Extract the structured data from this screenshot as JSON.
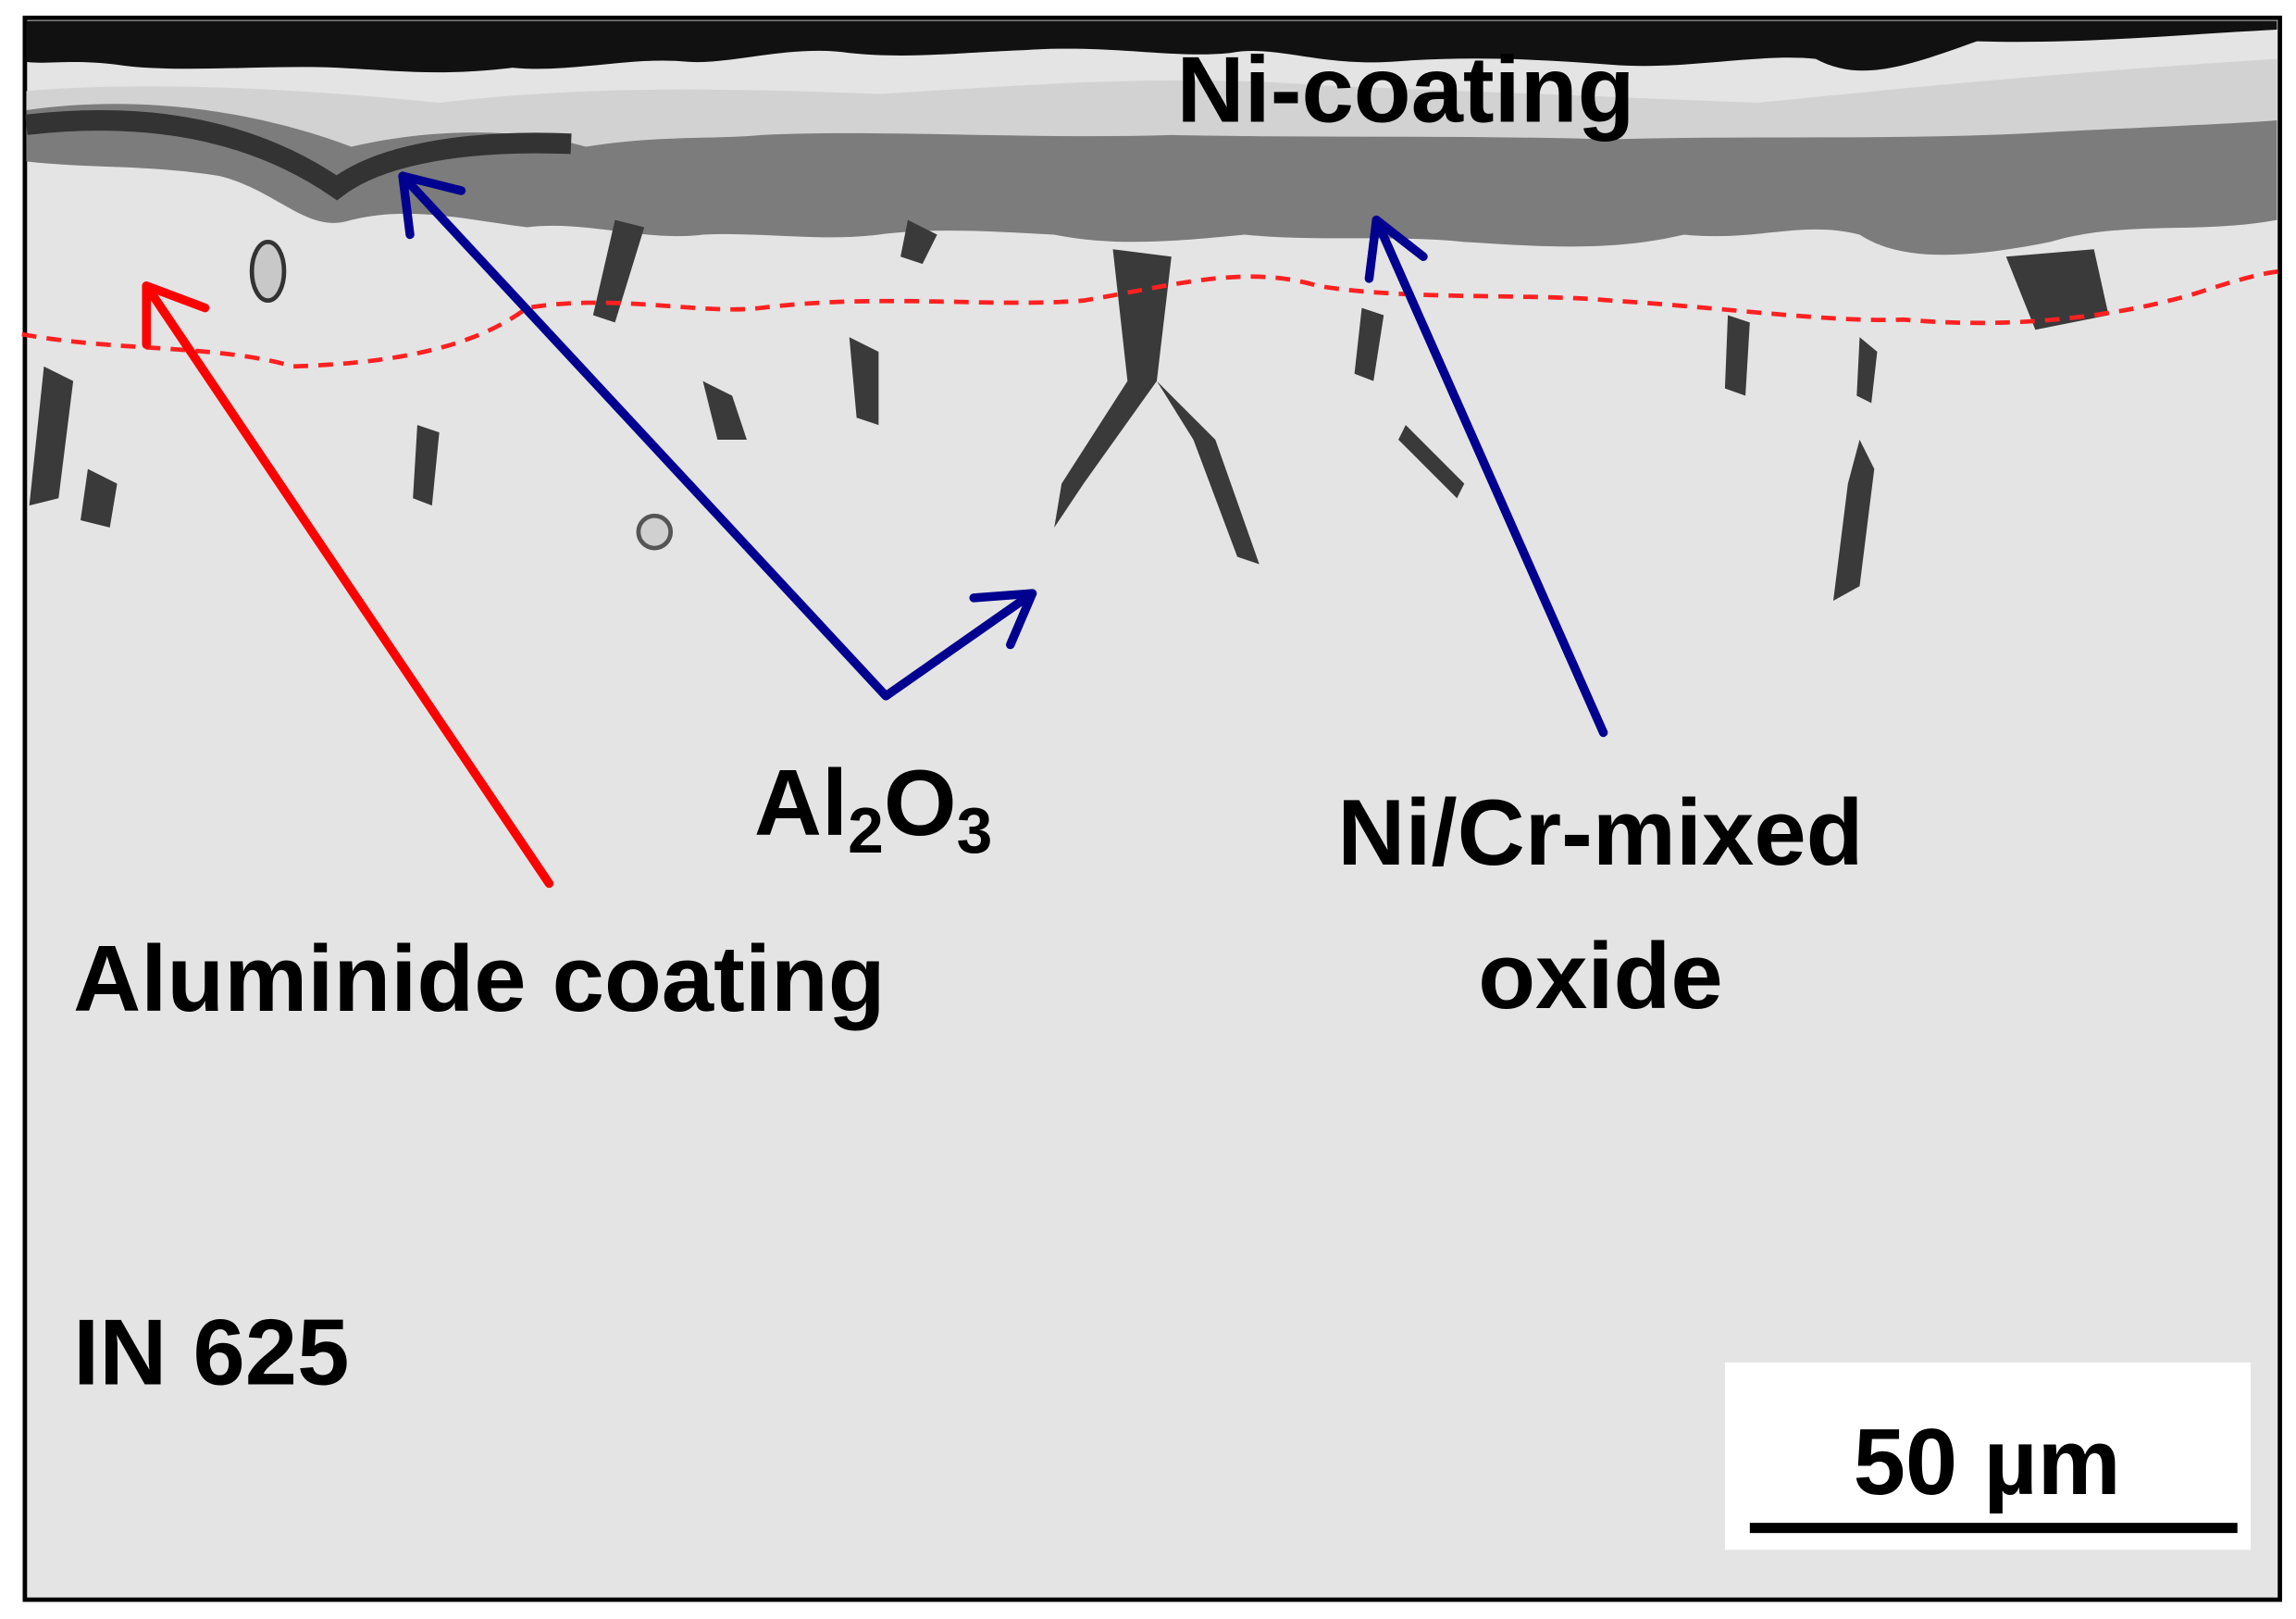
{
  "labels": {
    "ni_coating": "Ni-coating",
    "al2o3": {
      "parts": [
        "Al",
        "2",
        "O",
        "3"
      ]
    },
    "aluminide_coating": "Aluminide coating",
    "mixed_oxide": {
      "lines": [
        "Ni/Cr-mixed",
        "oxide"
      ]
    },
    "substrate": "IN 625"
  },
  "scale_bar": {
    "label": "50 µm"
  }
}
